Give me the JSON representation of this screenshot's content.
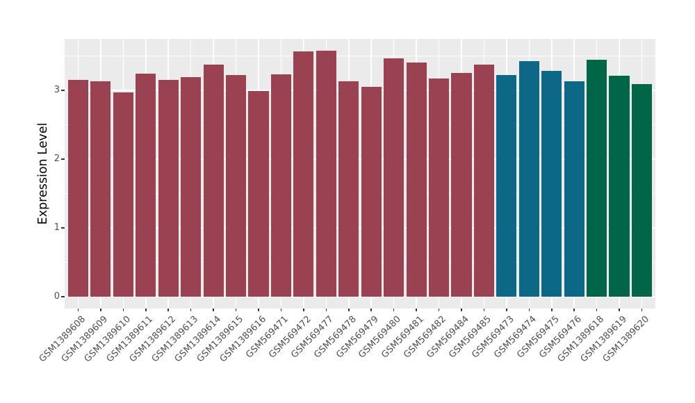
{
  "chart_data": {
    "type": "bar",
    "title": "",
    "xlabel": "",
    "ylabel": "Expression Level",
    "ylim": [
      -0.17,
      3.75
    ],
    "yticks": [
      0,
      1,
      2,
      3
    ],
    "grid_major": [
      0,
      1,
      2,
      3
    ],
    "grid_minor": [
      0.5,
      1.5,
      2.5,
      3.5
    ],
    "grid": "on",
    "legend_position": "none",
    "bars": [
      {
        "label": "GSM1389608",
        "value": 3.15,
        "group": "group1"
      },
      {
        "label": "GSM1389609",
        "value": 3.13,
        "group": "group1"
      },
      {
        "label": "GSM1389610",
        "value": 2.97,
        "group": "group1"
      },
      {
        "label": "GSM1389611",
        "value": 3.24,
        "group": "group1"
      },
      {
        "label": "GSM1389612",
        "value": 3.15,
        "group": "group1"
      },
      {
        "label": "GSM1389613",
        "value": 3.19,
        "group": "group1"
      },
      {
        "label": "GSM1389614",
        "value": 3.38,
        "group": "group1"
      },
      {
        "label": "GSM1389615",
        "value": 3.22,
        "group": "group1"
      },
      {
        "label": "GSM1389616",
        "value": 2.99,
        "group": "group1"
      },
      {
        "label": "GSM569471",
        "value": 3.23,
        "group": "group1"
      },
      {
        "label": "GSM569472",
        "value": 3.57,
        "group": "group1"
      },
      {
        "label": "GSM569477",
        "value": 3.58,
        "group": "group1"
      },
      {
        "label": "GSM569478",
        "value": 3.13,
        "group": "group1"
      },
      {
        "label": "GSM569479",
        "value": 3.05,
        "group": "group1"
      },
      {
        "label": "GSM569480",
        "value": 3.47,
        "group": "group1"
      },
      {
        "label": "GSM569481",
        "value": 3.41,
        "group": "group1"
      },
      {
        "label": "GSM569482",
        "value": 3.17,
        "group": "group1"
      },
      {
        "label": "GSM569484",
        "value": 3.26,
        "group": "group1"
      },
      {
        "label": "GSM569485",
        "value": 3.38,
        "group": "group1"
      },
      {
        "label": "GSM569473",
        "value": 3.22,
        "group": "group2"
      },
      {
        "label": "GSM569474",
        "value": 3.43,
        "group": "group2"
      },
      {
        "label": "GSM569475",
        "value": 3.29,
        "group": "group2"
      },
      {
        "label": "GSM569476",
        "value": 3.13,
        "group": "group2"
      },
      {
        "label": "GSM1389618",
        "value": 3.45,
        "group": "group3"
      },
      {
        "label": "GSM1389619",
        "value": 3.21,
        "group": "group3"
      },
      {
        "label": "GSM1389620",
        "value": 3.09,
        "group": "group3"
      }
    ],
    "group_colors": {
      "group1": "#9B4252",
      "group2": "#0D6787",
      "group3": "#006647"
    },
    "colors": {
      "panel_background": "#EBEBEB",
      "gridline": "#FFFFFF",
      "tick_mark": "#333333",
      "axis_text": "#4D4D4D",
      "axis_title": "#000000",
      "figure_background": "#FFFFFF"
    }
  }
}
